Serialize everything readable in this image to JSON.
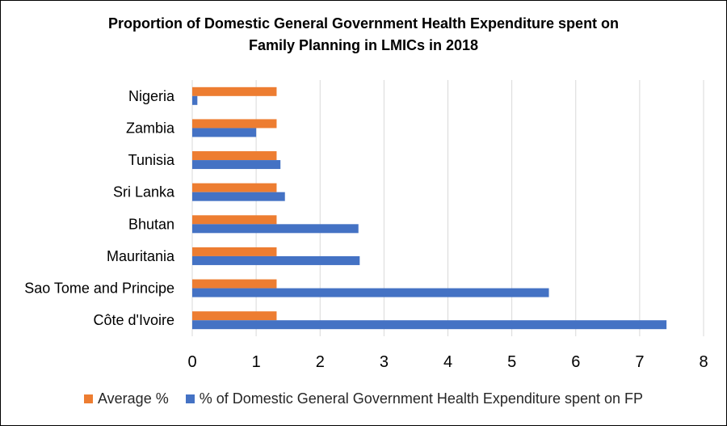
{
  "chart_data": {
    "type": "bar",
    "orientation": "horizontal",
    "title_lines": [
      "Proportion of Domestic General Government Health Expenditure spent on",
      "Family Planning in LMICs in 2018"
    ],
    "categories": [
      "Nigeria",
      "Zambia",
      "Tunisia",
      "Sri Lanka",
      "Bhutan",
      "Mauritania",
      "Sao Tome and Principe",
      "Côte d'Ivoire"
    ],
    "series": [
      {
        "name": "Average %",
        "color": "#ED7D31",
        "values": [
          1.32,
          1.32,
          1.32,
          1.32,
          1.32,
          1.32,
          1.32,
          1.32
        ]
      },
      {
        "name": "% of Domestic General Government Health Expenditure spent on FP",
        "color": "#4472C4",
        "values": [
          0.08,
          1.0,
          1.38,
          1.45,
          2.6,
          2.62,
          5.58,
          7.42
        ]
      }
    ],
    "xlim": [
      0,
      8
    ],
    "xticks": [
      "0",
      "1",
      "2",
      "3",
      "4",
      "5",
      "6",
      "7",
      "8"
    ],
    "grid": true,
    "legend_position": "bottom"
  }
}
